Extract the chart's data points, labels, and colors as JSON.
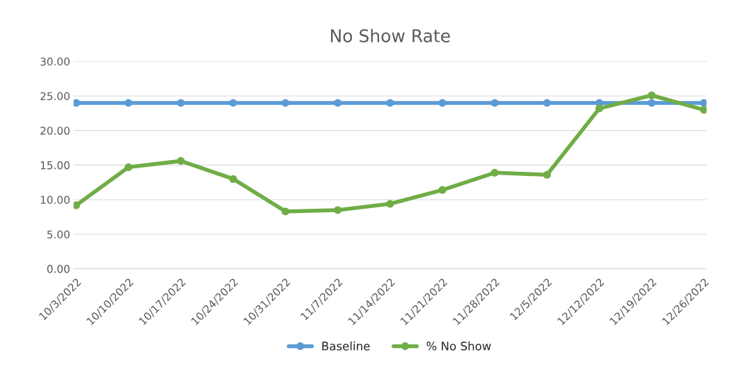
{
  "chart_data": {
    "type": "line",
    "title": "No Show Rate",
    "categories": [
      "10/3/2022",
      "10/10/2022",
      "10/17/2022",
      "10/24/2022",
      "10/31/2022",
      "11/7/2022",
      "11/14/2022",
      "11/21/2022",
      "11/28/2022",
      "12/5/2022",
      "12/12/2022",
      "12/19/2022",
      "12/26/2022"
    ],
    "series": [
      {
        "name": "Baseline",
        "color": "#5b9bd5",
        "values": [
          24,
          24,
          24,
          24,
          24,
          24,
          24,
          24,
          24,
          24,
          24,
          24,
          24
        ]
      },
      {
        "name": "% No Show",
        "color": "#70ad47",
        "values": [
          9.2,
          14.7,
          15.6,
          13.0,
          8.3,
          8.5,
          9.4,
          11.4,
          13.9,
          13.6,
          23.2,
          25.1,
          23.0
        ]
      }
    ],
    "ylim": [
      0,
      30
    ],
    "yticks": [
      {
        "value": 0,
        "label": "0.00"
      },
      {
        "value": 5,
        "label": "5.00"
      },
      {
        "value": 10,
        "label": "10.00"
      },
      {
        "value": 15,
        "label": "15.00"
      },
      {
        "value": 20,
        "label": "20.00"
      },
      {
        "value": 25,
        "label": "25.00"
      },
      {
        "value": 30,
        "label": "30.00"
      }
    ],
    "grid": "y",
    "legend": "bottom",
    "marker": "circle",
    "line_style": "solid"
  }
}
